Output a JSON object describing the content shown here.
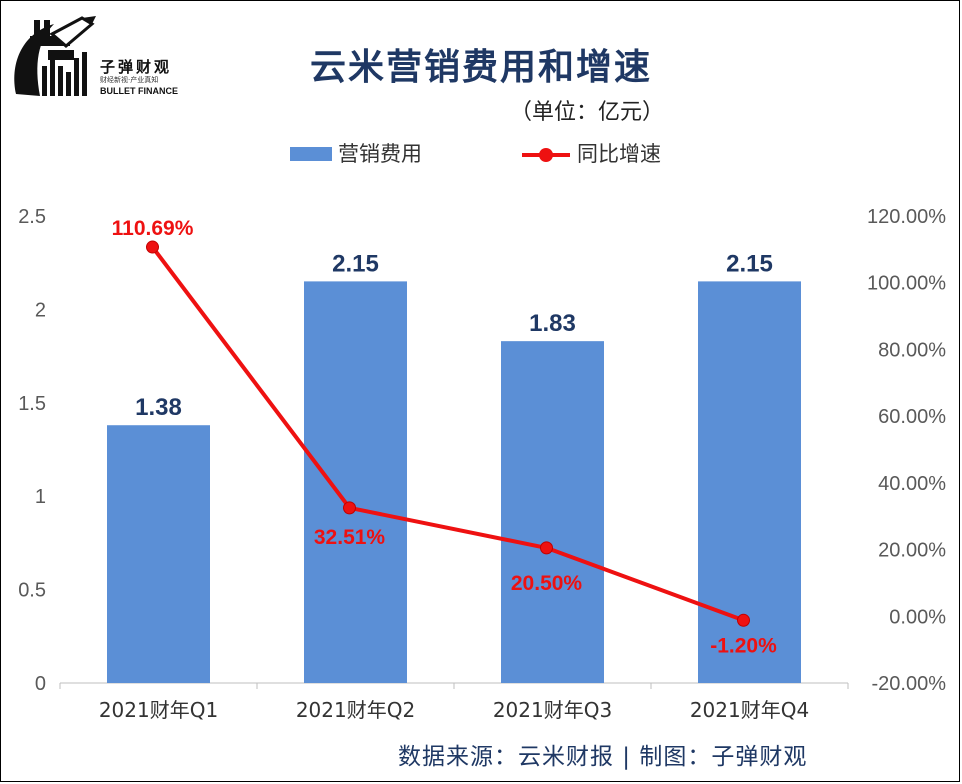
{
  "logo": {
    "name_cn": "子弹财观",
    "tagline": "财经新视·产业真知",
    "name_en": "BULLET FINANCE"
  },
  "title": "云米营销费用和增速",
  "unit": "（单位：亿元）",
  "legend": {
    "bar_label": "营销费用",
    "line_label": "同比增速"
  },
  "footer": "数据来源：云米财报  |  制图：子弹财观",
  "colors": {
    "bar": "#5b8fd6",
    "line": "#ee1111",
    "bar_label": "#1f3864",
    "line_label": "#ee1111"
  },
  "chart_data": {
    "type": "bar",
    "categories": [
      "2021财年Q1",
      "2021财年Q2",
      "2021财年Q3",
      "2021财年Q4"
    ],
    "series": [
      {
        "name": "营销费用",
        "type": "bar",
        "axis": "left",
        "values": [
          1.38,
          2.15,
          1.83,
          2.15
        ],
        "labels": [
          "1.38",
          "2.15",
          "1.83",
          "2.15"
        ]
      },
      {
        "name": "同比增速",
        "type": "line",
        "axis": "right",
        "values": [
          110.69,
          32.51,
          20.5,
          -1.2
        ],
        "labels": [
          "110.69%",
          "32.51%",
          "20.50%",
          "-1.20%"
        ]
      }
    ],
    "y_left": {
      "range": [
        0,
        2.5
      ],
      "ticks": [
        0,
        0.5,
        1,
        1.5,
        2,
        2.5
      ],
      "tick_labels": [
        "0",
        "0.5",
        "1",
        "1.5",
        "2",
        "2.5"
      ]
    },
    "y_right": {
      "range": [
        -20,
        120
      ],
      "ticks": [
        -20,
        0,
        20,
        40,
        60,
        80,
        100,
        120
      ],
      "tick_labels": [
        "-20.00%",
        "0.00%",
        "20.00%",
        "40.00%",
        "60.00%",
        "80.00%",
        "100.00%",
        "120.00%"
      ]
    },
    "grid": false,
    "legend_position": "top-center"
  }
}
